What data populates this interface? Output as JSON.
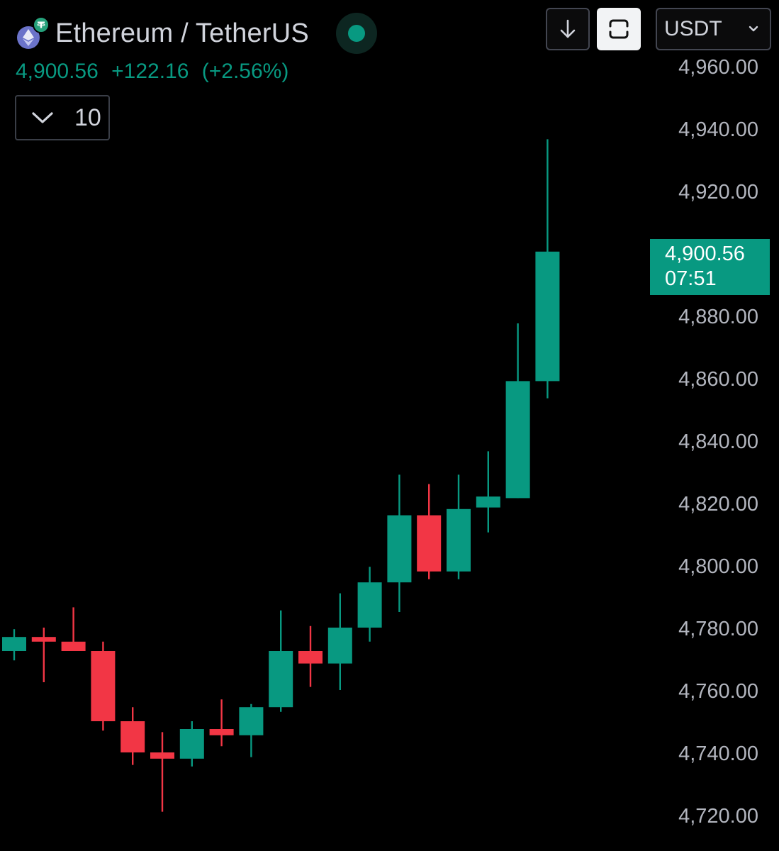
{
  "header": {
    "pair": "Ethereum / TetherUS",
    "last_price": "4,900.56",
    "change": "+122.16",
    "change_pct": "(+2.56%)",
    "status_color": "#089981"
  },
  "controls": {
    "interval_value": "10",
    "interval_icon": "chevron-down-icon",
    "download_icon": "arrow-down-icon",
    "frame_icon": "frame-icon",
    "currency": "USDT",
    "currency_icon": "chevron-down-icon"
  },
  "current_price_label": {
    "price": "4,900.56",
    "countdown": "07:51"
  },
  "colors": {
    "up": "#089981",
    "down": "#f23645",
    "background": "#000000",
    "axis_text": "#b2b5be"
  },
  "chart_data": {
    "type": "candlestick",
    "y_axis_position": "right",
    "ylim": [
      4715,
      4962
    ],
    "yticks": [
      {
        "value": 4960,
        "label": "4,960.00"
      },
      {
        "value": 4940,
        "label": "4,940.00"
      },
      {
        "value": 4920,
        "label": "4,920.00"
      },
      {
        "value": 4880,
        "label": "4,880.00"
      },
      {
        "value": 4860,
        "label": "4,860.00"
      },
      {
        "value": 4840,
        "label": "4,840.00"
      },
      {
        "value": 4820,
        "label": "4,820.00"
      },
      {
        "value": 4800,
        "label": "4,800.00"
      },
      {
        "value": 4780,
        "label": "4,780.00"
      },
      {
        "value": 4760,
        "label": "4,760.00"
      },
      {
        "value": 4740,
        "label": "4,740.00"
      },
      {
        "value": 4720,
        "label": "4,720.00"
      }
    ],
    "candles": [
      {
        "open": 4772.5,
        "high": 4779.5,
        "low": 4769.5,
        "close": 4777.0
      },
      {
        "open": 4777.0,
        "high": 4780.0,
        "low": 4762.5,
        "close": 4775.5
      },
      {
        "open": 4775.5,
        "high": 4786.5,
        "low": 4772.5,
        "close": 4772.5
      },
      {
        "open": 4772.5,
        "high": 4775.5,
        "low": 4747.0,
        "close": 4750.0
      },
      {
        "open": 4750.0,
        "high": 4754.5,
        "low": 4736.0,
        "close": 4740.0
      },
      {
        "open": 4740.0,
        "high": 4746.5,
        "low": 4721.0,
        "close": 4738.0
      },
      {
        "open": 4738.0,
        "high": 4750.0,
        "low": 4735.5,
        "close": 4747.5
      },
      {
        "open": 4747.5,
        "high": 4757.0,
        "low": 4742.0,
        "close": 4745.5
      },
      {
        "open": 4745.5,
        "high": 4755.5,
        "low": 4738.5,
        "close": 4754.5
      },
      {
        "open": 4754.5,
        "high": 4785.5,
        "low": 4753.0,
        "close": 4772.5
      },
      {
        "open": 4772.5,
        "high": 4780.5,
        "low": 4761.0,
        "close": 4768.5
      },
      {
        "open": 4768.5,
        "high": 4791.0,
        "low": 4760.0,
        "close": 4780.0
      },
      {
        "open": 4780.0,
        "high": 4799.5,
        "low": 4775.5,
        "close": 4794.5
      },
      {
        "open": 4794.5,
        "high": 4829.0,
        "low": 4785.0,
        "close": 4816.0
      },
      {
        "open": 4816.0,
        "high": 4826.0,
        "low": 4795.5,
        "close": 4798.0
      },
      {
        "open": 4798.0,
        "high": 4829.0,
        "low": 4795.5,
        "close": 4818.0
      },
      {
        "open": 4818.5,
        "high": 4836.5,
        "low": 4810.5,
        "close": 4822.0
      },
      {
        "open": 4821.5,
        "high": 4877.5,
        "low": 4821.5,
        "close": 4859.0
      },
      {
        "open": 4859.0,
        "high": 4936.5,
        "low": 4853.5,
        "close": 4900.5
      }
    ]
  }
}
